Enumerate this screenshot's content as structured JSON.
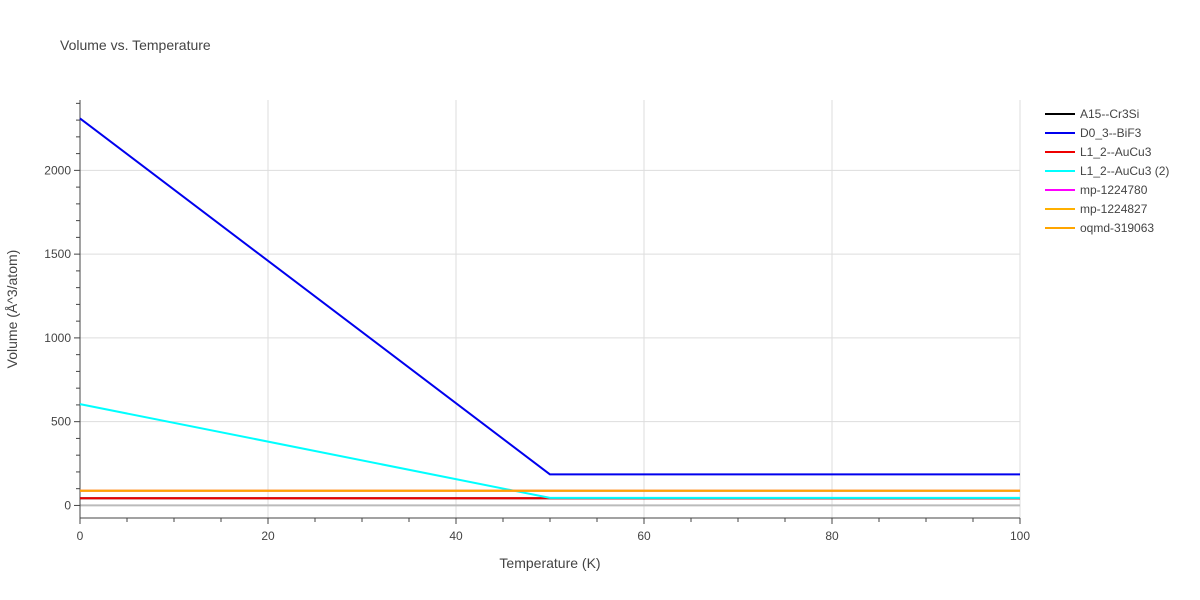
{
  "chart_data": {
    "type": "line",
    "title": "Volume vs. Temperature",
    "xlabel": "Temperature (K)",
    "ylabel": "Volume (Å^3/atom)",
    "xlim": [
      0,
      100
    ],
    "ylim": [
      -75,
      2420
    ],
    "xticks": [
      0,
      20,
      40,
      60,
      80,
      100
    ],
    "yticks": [
      0,
      500,
      1000,
      1500,
      2000
    ],
    "grid": true,
    "legend_position": "top-right",
    "series": [
      {
        "name": "A15--Cr3Si",
        "color": "#000000",
        "x": [
          0,
          100
        ],
        "y": [
          43,
          43
        ]
      },
      {
        "name": "D0_3--BiF3",
        "color": "#0000ee",
        "x": [
          0,
          50,
          100
        ],
        "y": [
          2310,
          185,
          185
        ]
      },
      {
        "name": "L1_2--AuCu3",
        "color": "#ee0000",
        "x": [
          0,
          100
        ],
        "y": [
          43,
          43
        ]
      },
      {
        "name": "L1_2--AuCu3 (2)",
        "color": "#00ffff",
        "x": [
          0,
          50,
          100
        ],
        "y": [
          605,
          45,
          45
        ]
      },
      {
        "name": "mp-1224780",
        "color": "#ff00ff",
        "x": [
          0,
          100
        ],
        "y": [
          88,
          88
        ]
      },
      {
        "name": "mp-1224827",
        "color": "#ffb000",
        "x": [
          0,
          100
        ],
        "y": [
          88,
          88
        ]
      },
      {
        "name": "oqmd-319063",
        "color": "#ffa500",
        "x": [
          0,
          100
        ],
        "y": [
          88,
          88
        ]
      }
    ]
  }
}
